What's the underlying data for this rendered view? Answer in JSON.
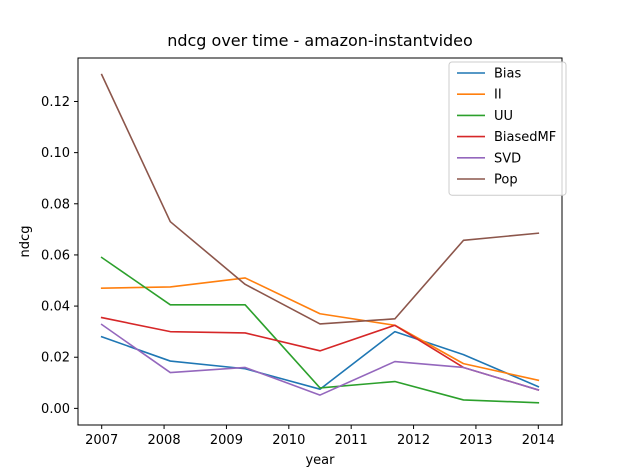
{
  "chart_data": {
    "type": "line",
    "title": "ndcg over time - amazon-instantvideo",
    "xlabel": "year",
    "ylabel": "ndcg",
    "xlim": [
      2006.62,
      2014.38
    ],
    "ylim": [
      -0.0065,
      0.137
    ],
    "x_ticks": [
      2007,
      2008,
      2009,
      2010,
      2011,
      2012,
      2013,
      2014
    ],
    "y_ticks": [
      0.0,
      0.02,
      0.04,
      0.06,
      0.08,
      0.1,
      0.12
    ],
    "y_tick_labels": [
      "0.00",
      "0.02",
      "0.04",
      "0.06",
      "0.08",
      "0.10",
      "0.12"
    ],
    "grid": false,
    "legend_position": "top-right",
    "x": [
      2007.0,
      2008.1,
      2009.3,
      2010.5,
      2011.7,
      2012.8,
      2014.0
    ],
    "series": [
      {
        "name": "Bias",
        "color": "#1f77b4",
        "values": [
          0.028,
          0.0185,
          0.0155,
          0.0075,
          0.03,
          0.021,
          0.0085
        ]
      },
      {
        "name": "II",
        "color": "#ff7f0e",
        "values": [
          0.047,
          0.0475,
          0.051,
          0.037,
          0.0325,
          0.0175,
          0.011
        ]
      },
      {
        "name": "UU",
        "color": "#2ca02c",
        "values": [
          0.059,
          0.0405,
          0.0405,
          0.008,
          0.0105,
          0.0033,
          0.0022
        ]
      },
      {
        "name": "BiasedMF",
        "color": "#d62728",
        "values": [
          0.0355,
          0.03,
          0.0295,
          0.0225,
          0.0325,
          0.016,
          0.0072
        ]
      },
      {
        "name": "SVD",
        "color": "#9467bd",
        "values": [
          0.0328,
          0.014,
          0.016,
          0.0052,
          0.0183,
          0.016,
          0.0072
        ]
      },
      {
        "name": "Pop",
        "color": "#8c564b",
        "values": [
          0.1305,
          0.073,
          0.0485,
          0.033,
          0.035,
          0.0657,
          0.0685
        ]
      }
    ]
  }
}
